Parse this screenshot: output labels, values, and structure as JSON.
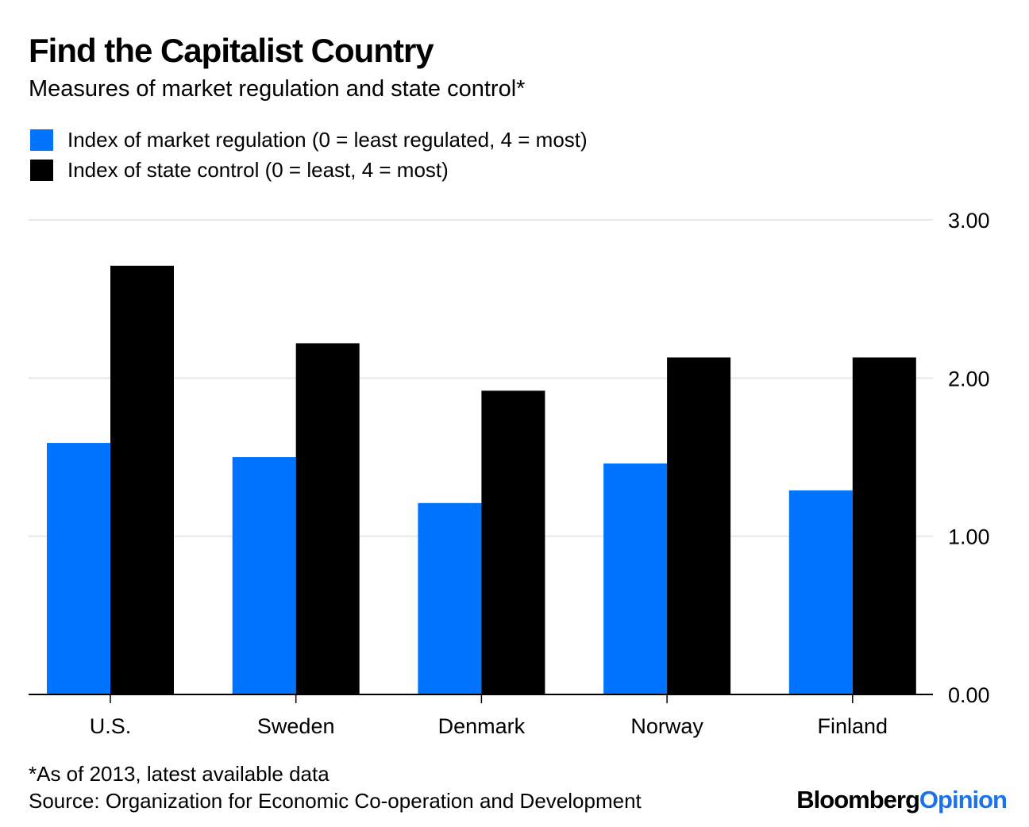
{
  "chart_data": {
    "type": "bar",
    "title": "Find the Capitalist Country",
    "subtitle": "Measures of market regulation and state control*",
    "categories": [
      "U.S.",
      "Sweden",
      "Denmark",
      "Norway",
      "Finland"
    ],
    "series": [
      {
        "name": "Index of market regulation (0 = least regulated, 4 = most)",
        "color": "#0074ff",
        "values": [
          1.59,
          1.5,
          1.21,
          1.46,
          1.29
        ]
      },
      {
        "name": "Index of state control (0 = least, 4 = most)",
        "color": "#000000",
        "values": [
          2.71,
          2.22,
          1.92,
          2.13,
          2.13
        ]
      }
    ],
    "xlabel": "",
    "ylabel": "",
    "ylim": [
      0,
      3
    ],
    "yticks": [
      0,
      1,
      2,
      3
    ],
    "ytick_labels": [
      "0.00",
      "1.00",
      "2.00",
      "3.00"
    ],
    "y_axis_side": "right",
    "grid": true,
    "legend_position": "top-left"
  },
  "footnote": "*As of 2013, latest available data",
  "source": "Source: Organization for Economic Co-operation and Development",
  "logo": {
    "part1": "Bloomberg",
    "part2": "Opinion"
  }
}
